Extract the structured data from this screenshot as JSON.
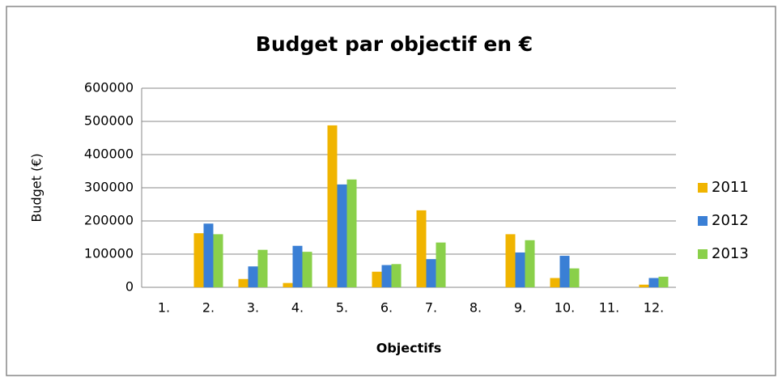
{
  "chart_data": {
    "type": "bar",
    "title": "Budget par objectif en €",
    "x_label": "Objectifs",
    "y_label": "Budget (€)",
    "categories": [
      "1.",
      "2.",
      "3.",
      "4.",
      "5.",
      "6.",
      "7.",
      "8.",
      "9.",
      "10.",
      "11.",
      "12."
    ],
    "series": [
      {
        "name": "2011",
        "color": "#f0b400",
        "values": [
          0,
          163000,
          25000,
          13000,
          488000,
          47000,
          232000,
          0,
          160000,
          28000,
          0,
          8000
        ]
      },
      {
        "name": "2012",
        "color": "#3a7fd5",
        "values": [
          0,
          192000,
          63000,
          125000,
          310000,
          67000,
          85000,
          0,
          105000,
          95000,
          0,
          28000
        ]
      },
      {
        "name": "2013",
        "color": "#8ad04a",
        "values": [
          0,
          160000,
          113000,
          107000,
          325000,
          70000,
          135000,
          0,
          142000,
          57000,
          0,
          32000
        ]
      }
    ],
    "ylim": [
      0,
      600000
    ],
    "yticks": [
      0,
      100000,
      200000,
      300000,
      400000,
      500000,
      600000
    ],
    "grid": true,
    "legend": "right"
  }
}
